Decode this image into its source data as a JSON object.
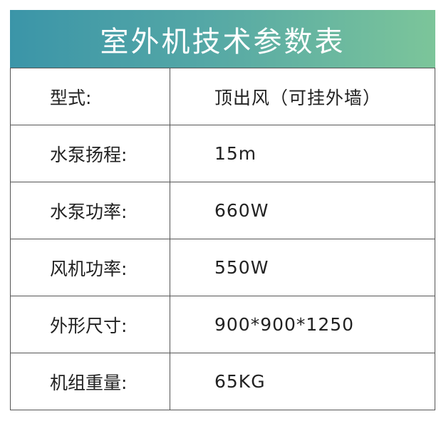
{
  "title": "室外机技术参数表",
  "colors": {
    "header_gradient_start": "#3b95a8",
    "header_gradient_end": "#7cc59a"
  },
  "rows": [
    {
      "label": "型式:",
      "value": "顶出风（可挂外墙）"
    },
    {
      "label": "水泵扬程:",
      "value": "15m"
    },
    {
      "label": "水泵功率:",
      "value": "660W"
    },
    {
      "label": "风机功率:",
      "value": "550W"
    },
    {
      "label": "外形尺寸:",
      "value": "900*900*1250"
    },
    {
      "label": "机组重量:",
      "value": "65KG"
    }
  ]
}
